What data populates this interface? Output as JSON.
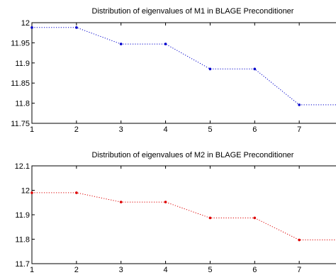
{
  "colors": {
    "background": "#ffffff",
    "axis": "#000000",
    "series_1": "#0000cc",
    "series_2": "#dd0000"
  },
  "chart_data": [
    {
      "type": "line",
      "title": "Distribution of eigenvalues of M1 in BLAGE Preconditioner",
      "xlabel": "",
      "ylabel": "",
      "xlim": [
        1,
        8
      ],
      "ylim": [
        11.75,
        12
      ],
      "xticks": [
        "1",
        "2",
        "3",
        "4",
        "5",
        "6",
        "7"
      ],
      "yticks": [
        "11.75",
        "11.8",
        "11.85",
        "11.9",
        "11.95",
        "12"
      ],
      "grid": false,
      "line_style": "dotted",
      "marker": "dot",
      "color": "#0000cc",
      "series": [
        {
          "x": [
            1,
            2,
            3,
            4,
            5,
            6,
            7,
            8
          ],
          "values": [
            11.988,
            11.988,
            11.947,
            11.947,
            11.885,
            11.885,
            11.796,
            11.796
          ]
        }
      ]
    },
    {
      "type": "line",
      "title": "Distribution of eigenvalues of M2 in BLAGE Preconditioner",
      "xlabel": "",
      "ylabel": "",
      "xlim": [
        1,
        8
      ],
      "ylim": [
        11.7,
        12.1
      ],
      "xticks": [
        "1",
        "2",
        "3",
        "4",
        "5",
        "6",
        "7"
      ],
      "yticks": [
        "11.7",
        "11.8",
        "11.9",
        "12",
        "12.1"
      ],
      "grid": false,
      "line_style": "dotted",
      "marker": "dot",
      "color": "#dd0000",
      "series": [
        {
          "x": [
            1,
            2,
            3,
            4,
            5,
            6,
            7,
            8
          ],
          "values": [
            11.99,
            11.99,
            11.952,
            11.952,
            11.887,
            11.887,
            11.797,
            11.797
          ]
        }
      ]
    }
  ]
}
